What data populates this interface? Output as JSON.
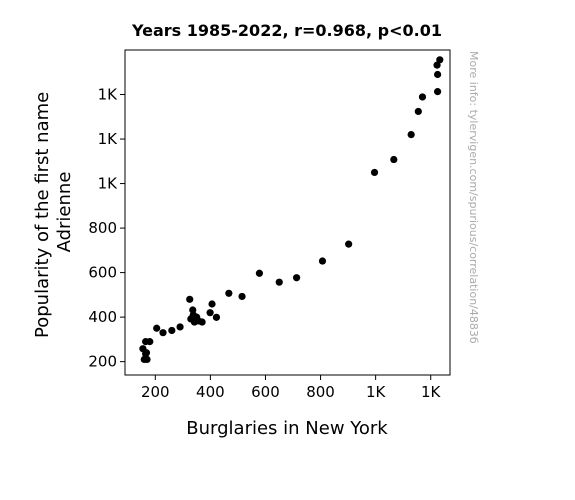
{
  "chart_data": {
    "type": "scatter",
    "title": "Years 1985-2022, r=0.968, p<0.01",
    "xlabel": "Burglaries in New York",
    "ylabel_lines": [
      "Popularity of the first name",
      "Adrienne"
    ],
    "watermark": "More info: tylervigen.com/spurious/correlation/4883б",
    "xlim": [
      90,
      1270
    ],
    "ylim": [
      140,
      1600
    ],
    "x_ticks": [
      {
        "value": 200,
        "label": "200"
      },
      {
        "value": 400,
        "label": "400"
      },
      {
        "value": 600,
        "label": "600"
      },
      {
        "value": 800,
        "label": "800"
      },
      {
        "value": 1000,
        "label": "1K"
      },
      {
        "value": 1200,
        "label": "1K"
      }
    ],
    "y_ticks": [
      {
        "value": 200,
        "label": "200"
      },
      {
        "value": 400,
        "label": "400"
      },
      {
        "value": 600,
        "label": "600"
      },
      {
        "value": 800,
        "label": "800"
      },
      {
        "value": 1000,
        "label": "1K"
      },
      {
        "value": 1200,
        "label": "1K"
      },
      {
        "value": 1400,
        "label": "1K"
      }
    ],
    "marker_color": "#000000",
    "points": [
      {
        "x": 1233,
        "y": 1556
      },
      {
        "x": 1223,
        "y": 1532
      },
      {
        "x": 1225,
        "y": 1490
      },
      {
        "x": 1225,
        "y": 1413
      },
      {
        "x": 1170,
        "y": 1389
      },
      {
        "x": 1155,
        "y": 1324
      },
      {
        "x": 1129,
        "y": 1220
      },
      {
        "x": 1066,
        "y": 1108
      },
      {
        "x": 996,
        "y": 1050
      },
      {
        "x": 902,
        "y": 728
      },
      {
        "x": 807,
        "y": 652
      },
      {
        "x": 713,
        "y": 577
      },
      {
        "x": 650,
        "y": 557
      },
      {
        "x": 578,
        "y": 597
      },
      {
        "x": 515,
        "y": 493
      },
      {
        "x": 467,
        "y": 507
      },
      {
        "x": 422,
        "y": 399
      },
      {
        "x": 406,
        "y": 459
      },
      {
        "x": 399,
        "y": 420
      },
      {
        "x": 370,
        "y": 378
      },
      {
        "x": 357,
        "y": 383
      },
      {
        "x": 350,
        "y": 400
      },
      {
        "x": 342,
        "y": 378
      },
      {
        "x": 338,
        "y": 410
      },
      {
        "x": 336,
        "y": 432
      },
      {
        "x": 329,
        "y": 392
      },
      {
        "x": 325,
        "y": 480
      },
      {
        "x": 290,
        "y": 356
      },
      {
        "x": 260,
        "y": 340
      },
      {
        "x": 228,
        "y": 330
      },
      {
        "x": 205,
        "y": 350
      },
      {
        "x": 180,
        "y": 290
      },
      {
        "x": 165,
        "y": 290
      },
      {
        "x": 168,
        "y": 240
      },
      {
        "x": 155,
        "y": 258
      },
      {
        "x": 160,
        "y": 210
      },
      {
        "x": 170,
        "y": 210
      },
      {
        "x": 165,
        "y": 235
      }
    ]
  }
}
